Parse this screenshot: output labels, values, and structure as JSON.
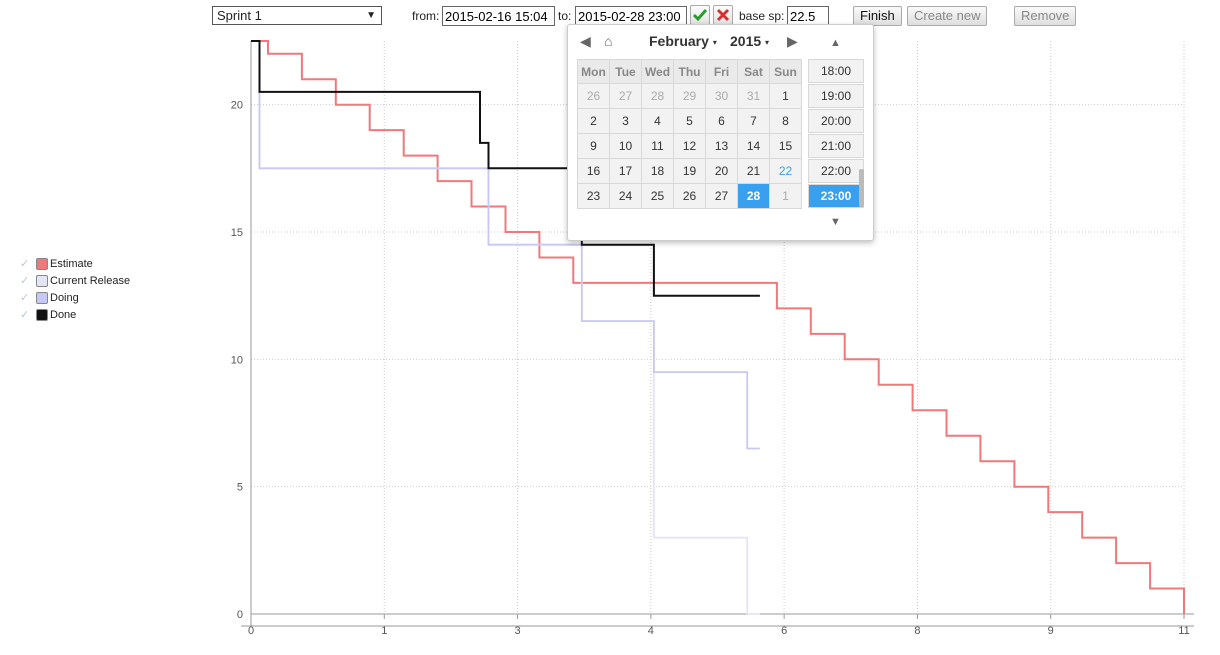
{
  "toolbar": {
    "sprint": "Sprint 1",
    "from_label": "from:",
    "from_value": "2015-02-16 15:04",
    "to_label": "to:",
    "to_value": "2015-02-28 23:00",
    "base_label": "base sp:",
    "base_value": "22.5",
    "finish_label": "Finish",
    "create_label": "Create new",
    "remove_label": "Remove"
  },
  "legend": [
    {
      "label": "Estimate",
      "color": "#f07878"
    },
    {
      "label": "Current Release",
      "color": "#e4e4f8"
    },
    {
      "label": "Doing",
      "color": "#c8c8f6"
    },
    {
      "label": "Done",
      "color": "#111111"
    }
  ],
  "picker": {
    "month": "February",
    "year": "2015",
    "weekdays": [
      "Mon",
      "Tue",
      "Wed",
      "Thu",
      "Fri",
      "Sat",
      "Sun"
    ],
    "weeks": [
      [
        "26",
        "27",
        "28",
        "29",
        "30",
        "31",
        "1"
      ],
      [
        "2",
        "3",
        "4",
        "5",
        "6",
        "7",
        "8"
      ],
      [
        "9",
        "10",
        "11",
        "12",
        "13",
        "14",
        "15"
      ],
      [
        "16",
        "17",
        "18",
        "19",
        "20",
        "21",
        "22"
      ],
      [
        "23",
        "24",
        "25",
        "26",
        "27",
        "28",
        "1"
      ]
    ],
    "times": [
      "18:00",
      "19:00",
      "20:00",
      "21:00",
      "22:00",
      "23:00"
    ],
    "selected_time": "23:00"
  },
  "chart_data": {
    "type": "line",
    "grid": true,
    "xlim": [
      0,
      11
    ],
    "ylim": [
      0,
      22.5
    ],
    "x_ticks": [
      "0",
      "1",
      "3",
      "4",
      "6",
      "8",
      "9",
      "11"
    ],
    "y_ticks": [
      0,
      5,
      10,
      15,
      20
    ],
    "legend_position": "left",
    "series": [
      {
        "name": "Estimate",
        "color": "#f07878",
        "points": [
          [
            0,
            22.5
          ],
          [
            0.2,
            22.5
          ],
          [
            0.2,
            22
          ],
          [
            0.6,
            22
          ],
          [
            0.6,
            21
          ],
          [
            1.0,
            21
          ],
          [
            1.0,
            20
          ],
          [
            1.4,
            20
          ],
          [
            1.4,
            19
          ],
          [
            1.8,
            19
          ],
          [
            1.8,
            18
          ],
          [
            2.2,
            18
          ],
          [
            2.2,
            17
          ],
          [
            2.6,
            17
          ],
          [
            2.6,
            16
          ],
          [
            3.0,
            16
          ],
          [
            3.0,
            15
          ],
          [
            3.4,
            15
          ],
          [
            3.4,
            14
          ],
          [
            3.8,
            14
          ],
          [
            3.8,
            13
          ],
          [
            6.2,
            13
          ],
          [
            6.2,
            12
          ],
          [
            6.6,
            12
          ],
          [
            6.6,
            11
          ],
          [
            7.0,
            11
          ],
          [
            7.0,
            10
          ],
          [
            7.4,
            10
          ],
          [
            7.4,
            9
          ],
          [
            7.8,
            9
          ],
          [
            7.8,
            8
          ],
          [
            8.2,
            8
          ],
          [
            8.2,
            7
          ],
          [
            8.6,
            7
          ],
          [
            8.6,
            6
          ],
          [
            9.0,
            6
          ],
          [
            9.0,
            5
          ],
          [
            9.4,
            5
          ],
          [
            9.4,
            4
          ],
          [
            9.8,
            4
          ],
          [
            9.8,
            3
          ],
          [
            10.2,
            3
          ],
          [
            10.2,
            2
          ],
          [
            10.6,
            2
          ],
          [
            10.6,
            1
          ],
          [
            11.0,
            1
          ],
          [
            11.0,
            0
          ]
        ]
      },
      {
        "name": "Current Release",
        "color": "#e4e4f8",
        "points": [
          [
            0,
            22.5
          ],
          [
            0.1,
            22.5
          ],
          [
            0.1,
            17.5
          ],
          [
            2.8,
            17.5
          ],
          [
            2.8,
            14.5
          ],
          [
            3.9,
            14.5
          ],
          [
            3.9,
            11.5
          ],
          [
            4.75,
            11.5
          ],
          [
            4.75,
            3
          ],
          [
            5.85,
            3
          ],
          [
            5.85,
            0
          ],
          [
            6.0,
            0
          ]
        ]
      },
      {
        "name": "Doing",
        "color": "#c8c8f6",
        "points": [
          [
            0,
            22.5
          ],
          [
            0.1,
            22.5
          ],
          [
            0.1,
            17.5
          ],
          [
            2.8,
            17.5
          ],
          [
            2.8,
            14.5
          ],
          [
            3.9,
            14.5
          ],
          [
            3.9,
            11.5
          ],
          [
            4.75,
            11.5
          ],
          [
            4.75,
            9.5
          ],
          [
            5.85,
            9.5
          ],
          [
            5.85,
            6.5
          ],
          [
            6.0,
            6.5
          ]
        ]
      },
      {
        "name": "Done",
        "color": "#111111",
        "points": [
          [
            0,
            22.5
          ],
          [
            0.1,
            22.5
          ],
          [
            0.1,
            20.5
          ],
          [
            2.7,
            20.5
          ],
          [
            2.7,
            18.5
          ],
          [
            2.8,
            18.5
          ],
          [
            2.8,
            17.5
          ],
          [
            3.9,
            17.5
          ],
          [
            3.9,
            14.5
          ],
          [
            4.75,
            14.5
          ],
          [
            4.75,
            12.5
          ],
          [
            6.0,
            12.5
          ]
        ]
      }
    ]
  }
}
